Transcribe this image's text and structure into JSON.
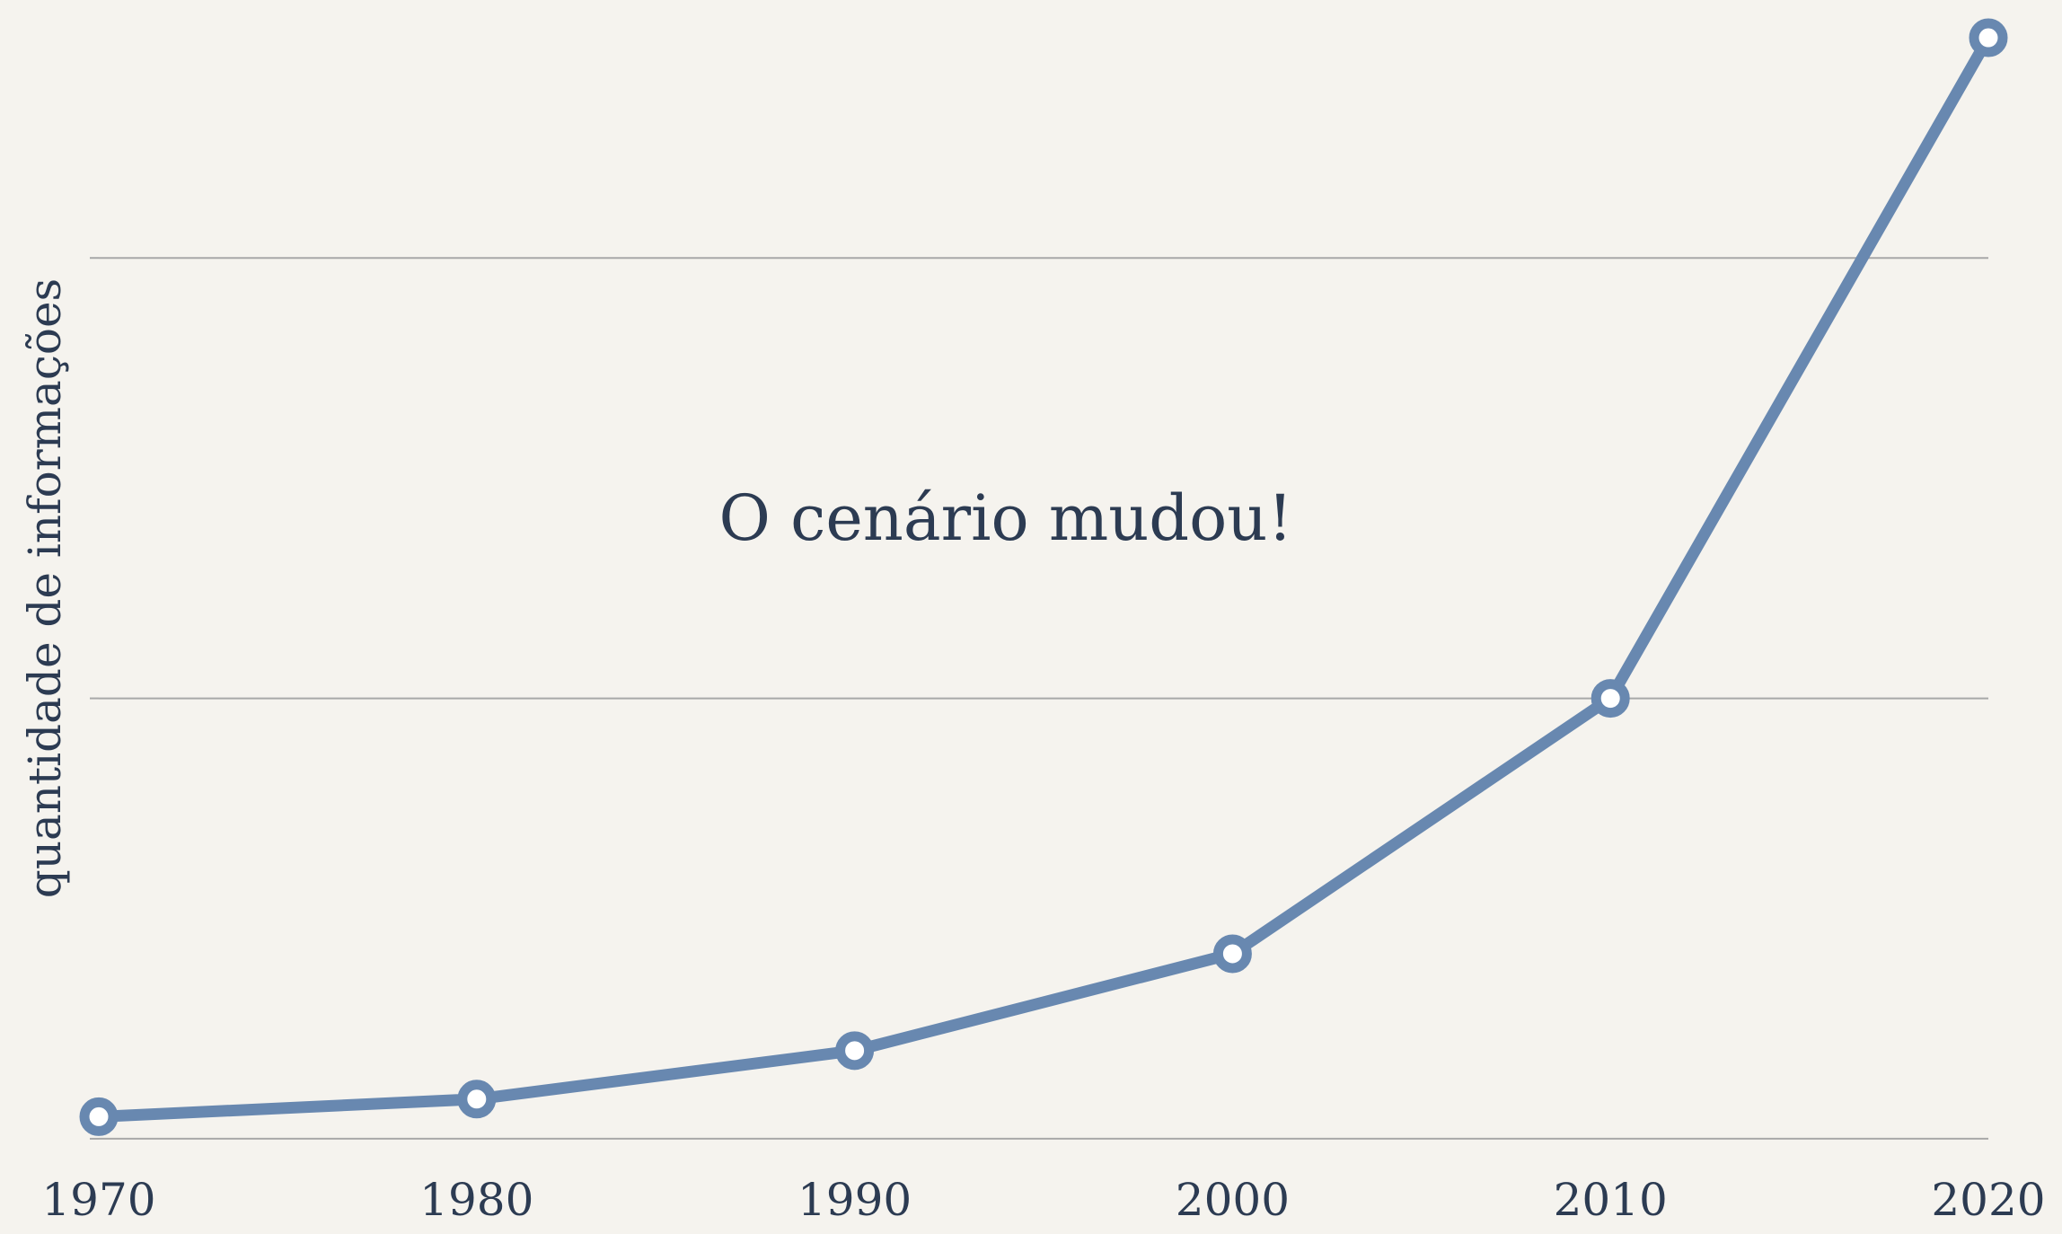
{
  "chart_data": {
    "type": "line",
    "ylabel": "quantidade de informações",
    "annotation": "O cenário mudou!",
    "x": [
      1970,
      1980,
      1990,
      2000,
      2010,
      2020
    ],
    "series": [
      {
        "name": null,
        "color": "#6888b0",
        "values": [
          0.05,
          0.09,
          0.2,
          0.42,
          1.0,
          2.5
        ]
      }
    ],
    "xlim": [
      1970,
      2020
    ],
    "xticks": [
      1970,
      1980,
      1990,
      2000,
      2010,
      2020
    ],
    "ylim": [
      -0.2,
      2.6
    ],
    "yticks": [
      0,
      1,
      2
    ],
    "grid": true
  }
}
